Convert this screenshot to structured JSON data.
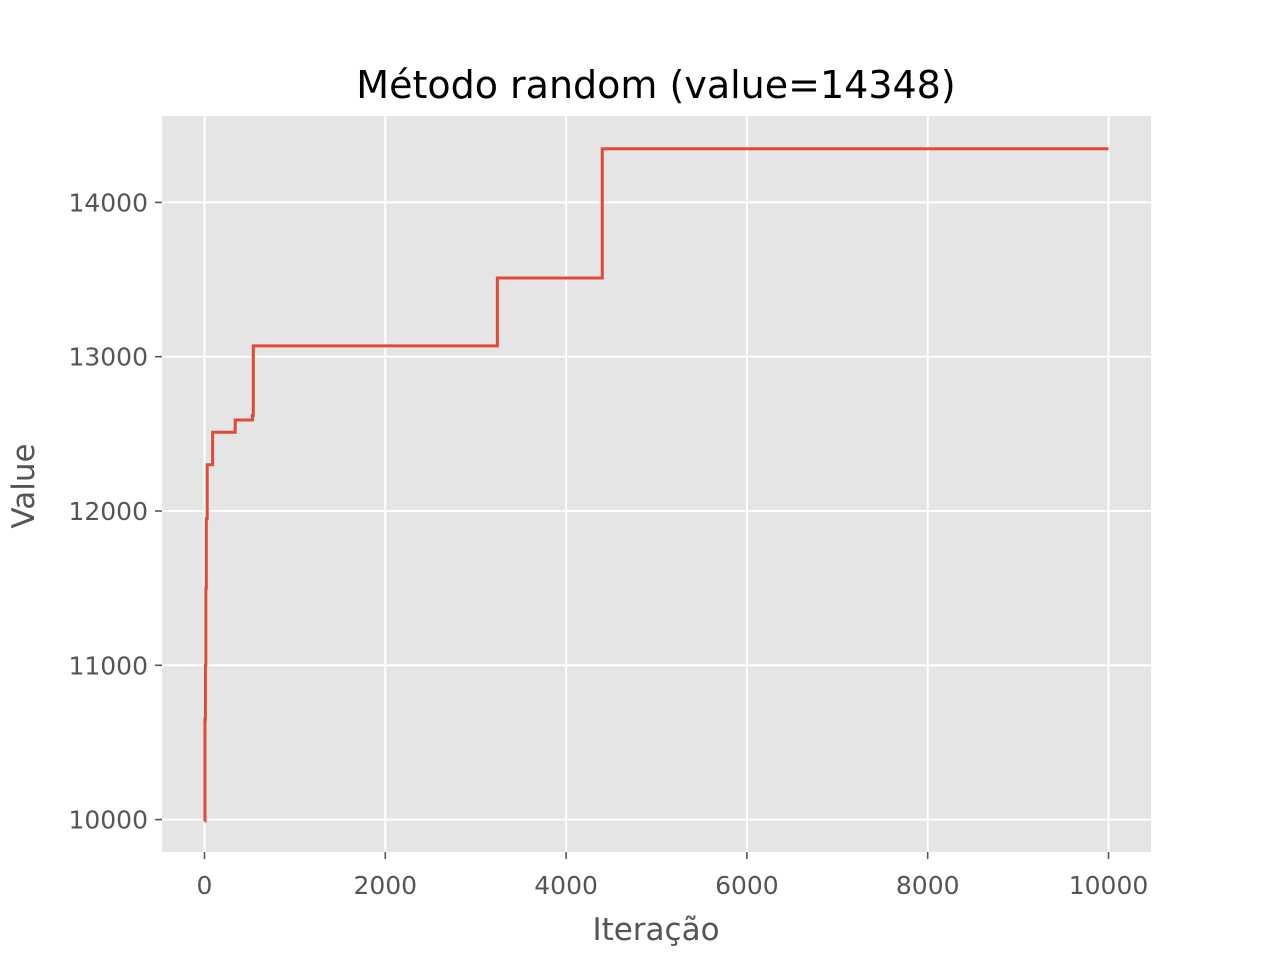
{
  "chart_data": {
    "type": "line",
    "title": "Método random (value=14348)",
    "xlabel": "Iteração",
    "ylabel": "Value",
    "xlim": [
      -470,
      10470
    ],
    "ylim": [
      9790,
      14560
    ],
    "xticks": [
      0,
      2000,
      4000,
      6000,
      8000,
      10000
    ],
    "yticks": [
      10000,
      11000,
      12000,
      13000,
      14000
    ],
    "xtick_labels": [
      "0",
      "2000",
      "4000",
      "6000",
      "8000",
      "10000"
    ],
    "ytick_labels": [
      "10000",
      "11000",
      "12000",
      "13000",
      "14000"
    ],
    "grid": true,
    "background": "#e5e5e5",
    "grid_color": "#ffffff",
    "series": [
      {
        "color": "#e24a33",
        "step": "post",
        "x": [
          0,
          5,
          10,
          15,
          20,
          30,
          40,
          90,
          340,
          530,
          540,
          3240,
          4400,
          10000
        ],
        "y": [
          9990,
          10650,
          11000,
          11500,
          11950,
          12300,
          12300,
          12510,
          12590,
          12620,
          13070,
          13510,
          14348,
          14348
        ]
      }
    ]
  }
}
